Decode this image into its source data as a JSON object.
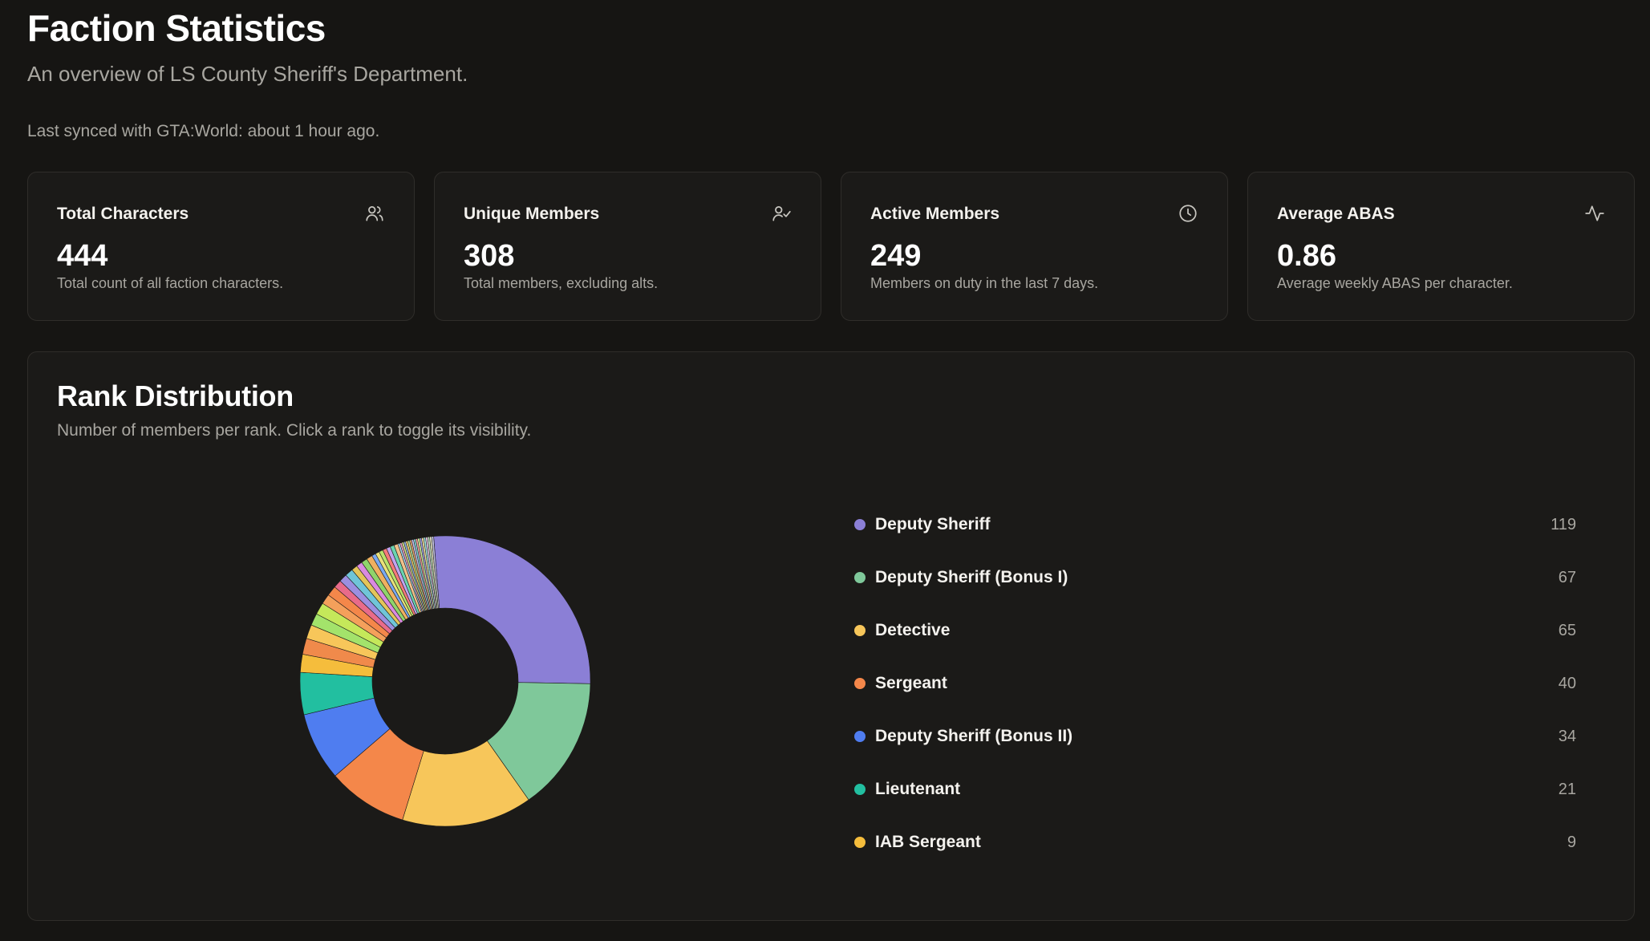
{
  "page": {
    "title": "Faction Statistics",
    "subtitle": "An overview of LS County Sheriff's Department.",
    "sync_text": "Last synced with GTA:World: about 1 hour ago."
  },
  "stats": [
    {
      "title": "Total Characters",
      "value": "444",
      "desc": "Total count of all faction characters.",
      "icon": "users-icon"
    },
    {
      "title": "Unique Members",
      "value": "308",
      "desc": "Total members, excluding alts.",
      "icon": "user-check-icon"
    },
    {
      "title": "Active Members",
      "value": "249",
      "desc": "Members on duty in the last 7 days.",
      "icon": "clock-icon"
    },
    {
      "title": "Average ABAS",
      "value": "0.86",
      "desc": "Average weekly ABAS per character.",
      "icon": "activity-icon"
    }
  ],
  "rank_panel": {
    "title": "Rank Distribution",
    "subtitle": "Number of members per rank. Click a rank to toggle its visibility."
  },
  "chart_data": {
    "type": "pie",
    "categories": [
      "Deputy Sheriff",
      "Deputy Sheriff (Bonus I)",
      "Detective",
      "Sergeant",
      "Deputy Sheriff (Bonus II)",
      "Lieutenant",
      "IAB Sergeant"
    ],
    "values": [
      119,
      67,
      65,
      40,
      34,
      21,
      9
    ],
    "colors": [
      "#8b7fd6",
      "#7fc89a",
      "#f7c65a",
      "#f4874a",
      "#4f7df0",
      "#22bfa0",
      "#f5bd3c"
    ],
    "other_slices": [
      8,
      7,
      6,
      6,
      5,
      5,
      4,
      4,
      4,
      3,
      3,
      3,
      3,
      2,
      2,
      2,
      2,
      2,
      2,
      2,
      1,
      1,
      1,
      1,
      1,
      1,
      1,
      1,
      1,
      1,
      1,
      1,
      1,
      1,
      1,
      1,
      1,
      1
    ],
    "other_colors": [
      "#f08a4b",
      "#f7c65a",
      "#a3e36b",
      "#c5e85a",
      "#f4a05b",
      "#f4874a",
      "#e86b8a",
      "#9b8fe0",
      "#6fc5d8",
      "#e3c55a",
      "#d98ae0",
      "#8fd46b",
      "#f0b060",
      "#7aa8f0",
      "#e8e07a",
      "#b7e36b",
      "#f47a7a",
      "#c0a3f0",
      "#6ad4b0",
      "#f0c08a",
      "#a0d0f0",
      "#e8a0c0",
      "#d0e08a",
      "#90b0e0",
      "#f0d070",
      "#b0e0a0",
      "#e0a070",
      "#c0c0f0",
      "#80d0d0",
      "#f0a0a0",
      "#d0f0a0",
      "#a0a0e0",
      "#f0e0a0",
      "#a0e0e0",
      "#e0c0e0",
      "#c0e0c0",
      "#e0e0c0",
      "#c0c0e0"
    ],
    "donut": true,
    "legend_placement": "right"
  }
}
